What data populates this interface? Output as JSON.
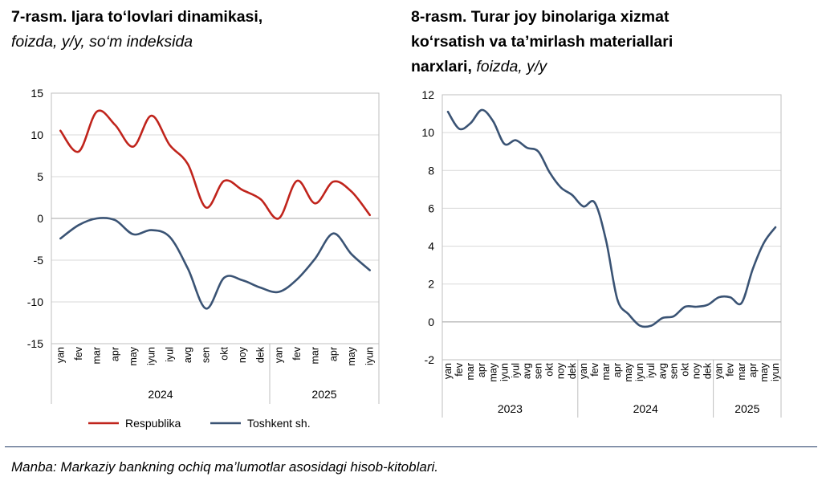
{
  "titles": {
    "left_bold": "7-rasm. Ijara to‘lovlari dinamikasi,",
    "left_italic": "foizda, y/y, so‘m indeksida",
    "right_bold_1": "8-rasm. Turar joy binolariga xizmat",
    "right_bold_2": "ko‘rsatish va ta’mirlash materiallari",
    "right_bold_3": "narxlari,",
    "right_italic": "foizda, y/y"
  },
  "source": "Manba: Markaziy bankning ochiq ma’lumotlar asosidagi hisob-kitoblari.",
  "colors": {
    "respublika": "#c0241c",
    "toshkent": "#3a5374",
    "grid": "#d9d9d9",
    "axis": "#bfbfbf"
  },
  "chart_data": [
    {
      "type": "line",
      "ylim": [
        -15,
        15
      ],
      "yticks": [
        15,
        10,
        5,
        0,
        -5,
        -10,
        -15
      ],
      "grid": true,
      "legend": "bottom",
      "categories": [
        "yan",
        "fev",
        "mar",
        "apr",
        "may",
        "iyun",
        "iyul",
        "avg",
        "sen",
        "okt",
        "noy",
        "dek",
        "yan",
        "fev",
        "mar",
        "apr",
        "may",
        "iyun"
      ],
      "year_groups": [
        {
          "label": "2024",
          "count": 12
        },
        {
          "label": "2025",
          "count": 6
        }
      ],
      "series": [
        {
          "name": "Respublika",
          "color": "#c0241c",
          "values": [
            10.5,
            8.0,
            12.8,
            11.2,
            8.6,
            12.3,
            8.8,
            6.5,
            1.3,
            4.5,
            3.4,
            2.3,
            0.0,
            4.5,
            1.8,
            4.4,
            3.2,
            0.4
          ]
        },
        {
          "name": "Toshkent sh.",
          "color": "#3a5374",
          "values": [
            -2.4,
            -0.8,
            0.0,
            -0.2,
            -1.9,
            -1.4,
            -2.2,
            -6.0,
            -10.8,
            -7.1,
            -7.4,
            -8.3,
            -8.8,
            -7.3,
            -4.8,
            -1.8,
            -4.3,
            -6.2
          ]
        }
      ]
    },
    {
      "type": "line",
      "ylim": [
        -2,
        12
      ],
      "yticks": [
        12,
        10,
        8,
        6,
        4,
        2,
        0,
        -2
      ],
      "grid": true,
      "categories": [
        "yan",
        "fev",
        "mar",
        "apr",
        "may",
        "iyun",
        "iyul",
        "avg",
        "sen",
        "okt",
        "noy",
        "dek",
        "yan",
        "fev",
        "mar",
        "apr",
        "may",
        "iyun",
        "iyul",
        "avg",
        "sen",
        "okt",
        "noy",
        "dek",
        "yan",
        "fev",
        "mar",
        "apr",
        "may",
        "iyun"
      ],
      "year_groups": [
        {
          "label": "2023",
          "count": 12
        },
        {
          "label": "2024",
          "count": 12
        },
        {
          "label": "2025",
          "count": 6
        }
      ],
      "series": [
        {
          "color": "#3a5374",
          "values": [
            11.1,
            10.2,
            10.5,
            11.2,
            10.6,
            9.4,
            9.6,
            9.2,
            9.0,
            7.9,
            7.1,
            6.7,
            6.1,
            6.3,
            4.3,
            1.2,
            0.4,
            -0.2,
            -0.2,
            0.2,
            0.3,
            0.8,
            0.8,
            0.9,
            1.3,
            1.3,
            1.0,
            2.8,
            4.2,
            5.0
          ]
        }
      ]
    }
  ]
}
